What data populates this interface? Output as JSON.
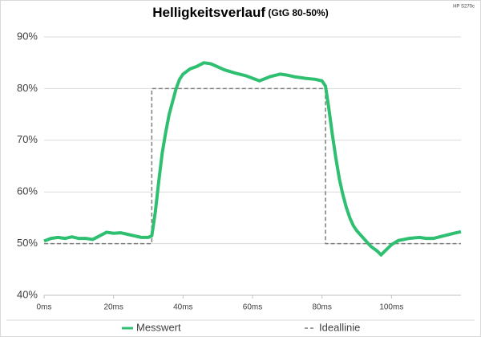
{
  "chart_data": {
    "type": "line",
    "title": "Helligkeitsverlauf",
    "subtitle": "(GtG 80-50%)",
    "corner_note": "HP S270c",
    "series": [
      {
        "name": "Messwert",
        "color": "#2fbf71",
        "line_style": "solid",
        "x": [
          0,
          2,
          4,
          6,
          8,
          10,
          12,
          14,
          16,
          18,
          20,
          22,
          24,
          26,
          28,
          30,
          31,
          32,
          33,
          34,
          35,
          36,
          37,
          38,
          39,
          40,
          42,
          44,
          46,
          48,
          50,
          52,
          55,
          58,
          60,
          62,
          65,
          68,
          70,
          72,
          75,
          78,
          80,
          81,
          82,
          83,
          84,
          85,
          86,
          87,
          88,
          89,
          90,
          92,
          94,
          96,
          97,
          98,
          100,
          102,
          105,
          108,
          110,
          112,
          115,
          118,
          120
        ],
        "values": [
          50.5,
          51,
          51.2,
          51,
          51.3,
          51,
          51,
          50.8,
          51.5,
          52.2,
          52,
          52.1,
          51.8,
          51.5,
          51.2,
          51.2,
          51.5,
          56,
          62,
          67.5,
          71.5,
          75,
          77.5,
          80,
          81.8,
          82.8,
          83.8,
          84.3,
          85,
          84.8,
          84.2,
          83.6,
          83,
          82.5,
          82,
          81.5,
          82.3,
          82.8,
          82.6,
          82.3,
          82,
          81.8,
          81.5,
          80.5,
          76,
          71,
          66.5,
          62.5,
          59.5,
          57,
          55,
          53.5,
          52.5,
          51,
          49.5,
          48.5,
          47.8,
          48.5,
          49.8,
          50.6,
          51,
          51.2,
          51,
          51,
          51.5,
          52,
          52.3
        ]
      },
      {
        "name": "Ideallinie",
        "color": "#7f7f7f",
        "line_style": "dashed",
        "x": [
          0,
          31,
          31,
          81,
          81,
          120
        ],
        "values": [
          50,
          50,
          80,
          80,
          50,
          50
        ]
      }
    ],
    "xlim": [
      0,
      120
    ],
    "xticks": [
      {
        "value": 0,
        "label": "0ms"
      },
      {
        "value": 20,
        "label": "20ms"
      },
      {
        "value": 40,
        "label": "40ms"
      },
      {
        "value": 60,
        "label": "60ms"
      },
      {
        "value": 80,
        "label": "80ms"
      },
      {
        "value": 100,
        "label": "100ms"
      }
    ],
    "ylim": [
      40,
      90
    ],
    "yticks": [
      {
        "value": 40,
        "label": "40%"
      },
      {
        "value": 50,
        "label": "50%"
      },
      {
        "value": 60,
        "label": "60%"
      },
      {
        "value": 70,
        "label": "70%"
      },
      {
        "value": 80,
        "label": "80%"
      },
      {
        "value": 90,
        "label": "90%"
      }
    ],
    "grid": true,
    "legend": "bottom"
  }
}
